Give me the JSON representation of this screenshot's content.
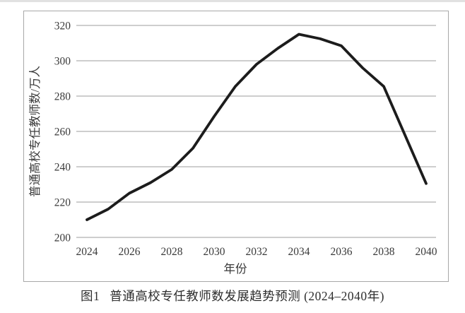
{
  "caption": {
    "label": "图1",
    "text": "普通高校专任教师数发展趋势预测 (2024–2040年)"
  },
  "chart_data": {
    "type": "line",
    "title": "普通高校专任教师数发展趋势预测 (2024–2040年)",
    "xlabel": "年份",
    "ylabel": "普通高校专任教师数/万人",
    "x": [
      2024,
      2025,
      2026,
      2027,
      2028,
      2029,
      2030,
      2031,
      2032,
      2033,
      2034,
      2035,
      2036,
      2037,
      2038,
      2039,
      2040
    ],
    "series": [
      {
        "name": "普通高校专任教师数/万人",
        "values": [
          210,
          216,
          225,
          231,
          238.5,
          250.5,
          268.5,
          285.5,
          298,
          307,
          315,
          312.5,
          308.5,
          296,
          285.5,
          258,
          230.5
        ]
      }
    ],
    "ylim": [
      200,
      320
    ],
    "yticks": [
      200,
      220,
      240,
      260,
      280,
      300,
      320
    ],
    "xticks": [
      2024,
      2026,
      2028,
      2030,
      2032,
      2034,
      2036,
      2038,
      2040
    ],
    "grid": "horizontal",
    "legend": "none",
    "line_color": "#1c1c1c"
  },
  "colors": {
    "background": "#ffffff",
    "border": "#a8a8a8",
    "grid": "#b0b0b0",
    "text": "#3a3a3a",
    "line": "#1c1c1c"
  }
}
